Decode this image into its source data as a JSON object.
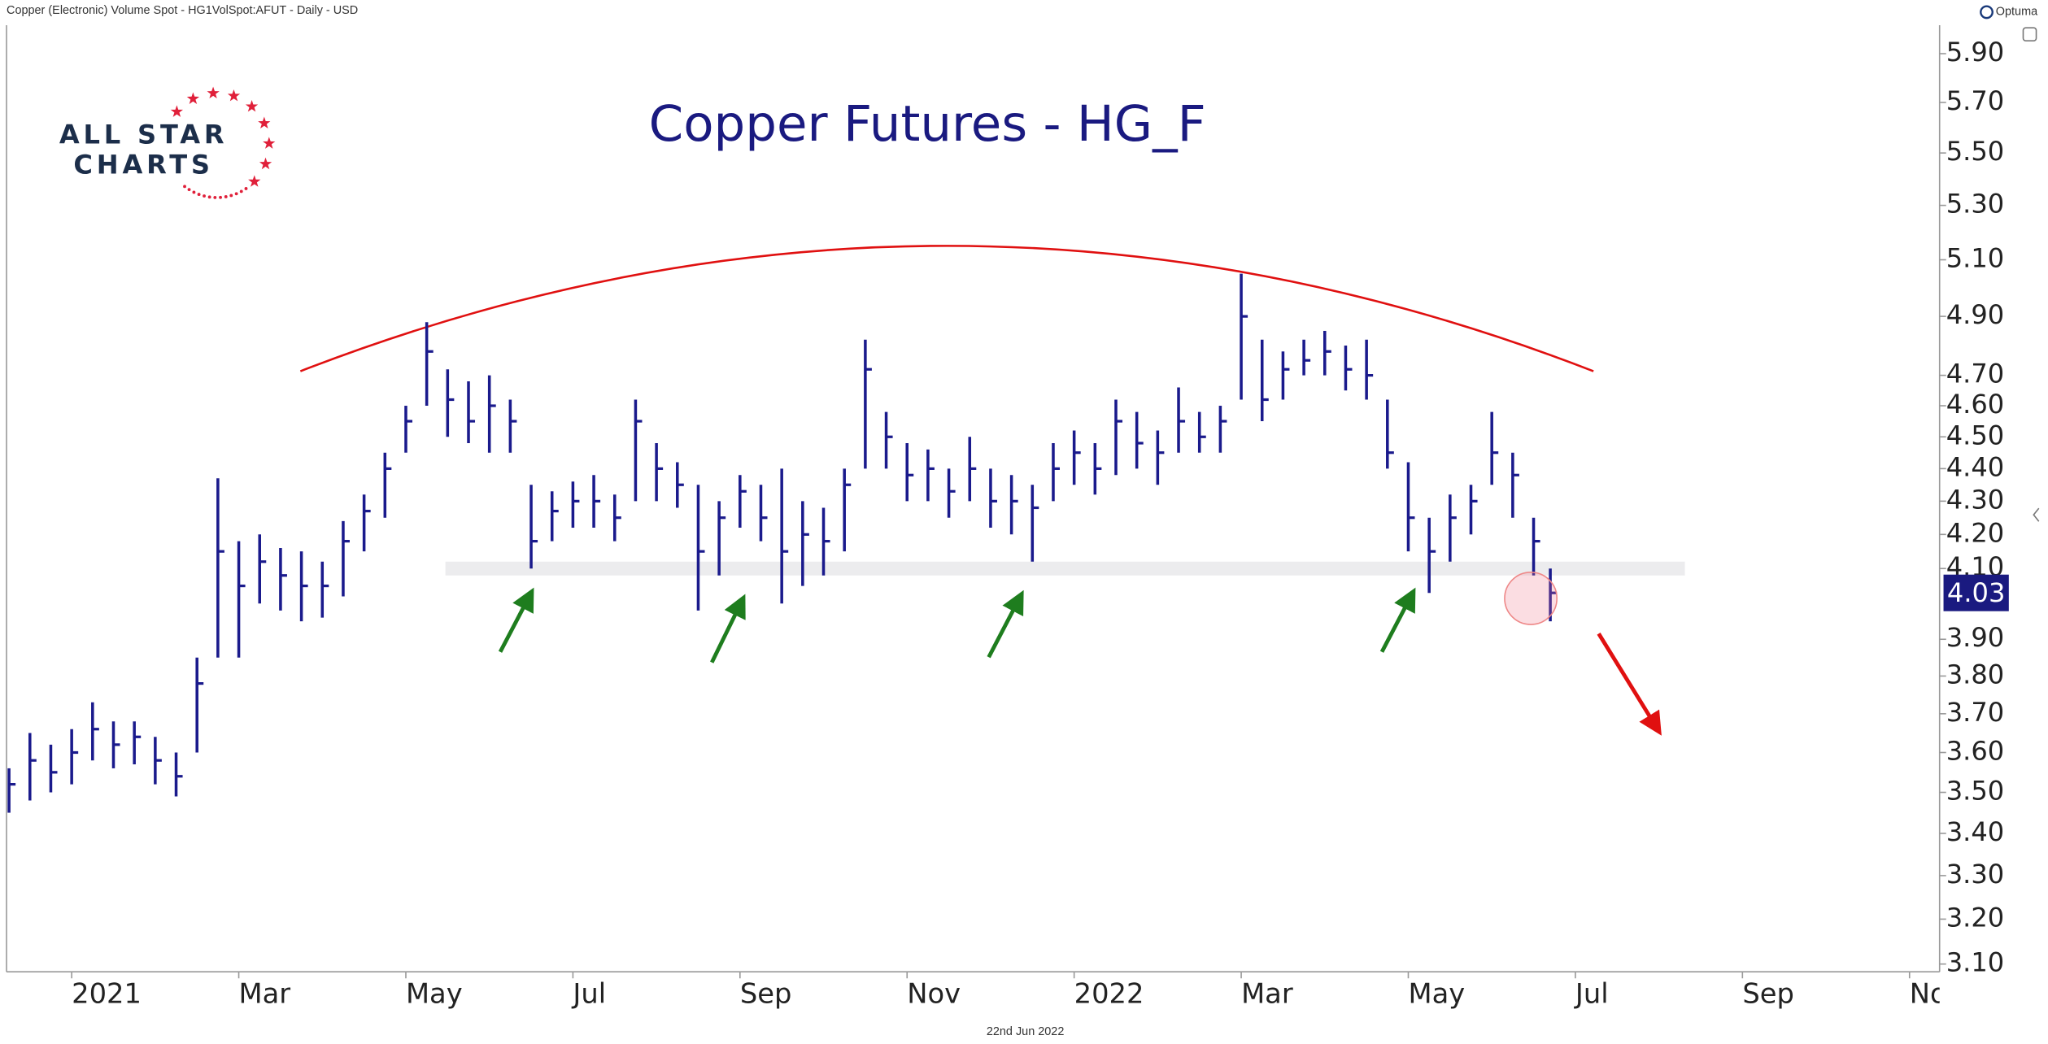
{
  "header": {
    "source": "Copper (Electronic) Volume Spot - HG1VolSpot:AFUT - Daily - USD",
    "brand": "Optuma"
  },
  "logo": [
    "ALL STAR",
    "CHARTS"
  ],
  "footer_date": "22nd Jun 2022",
  "chart_data": {
    "type": "ohlc",
    "title": "Copper Futures - HG_F",
    "color": "#1a1a8c",
    "log_scale": true,
    "x": [
      -0.75,
      -0.5,
      -0.25,
      0,
      0.25,
      0.5,
      0.75,
      1,
      1.25,
      1.5,
      1.75,
      2,
      2.25,
      2.5,
      2.75,
      3,
      3.25,
      3.5,
      3.75,
      4,
      4.25,
      4.5,
      4.75,
      5,
      5.25,
      5.5,
      5.75,
      6,
      6.25,
      6.5,
      6.75,
      7,
      7.25,
      7.5,
      7.75,
      8,
      8.25,
      8.5,
      8.75,
      9,
      9.25,
      9.5,
      9.75,
      10,
      10.25,
      10.5,
      10.75,
      11,
      11.25,
      11.5,
      11.75,
      12,
      12.25,
      12.5,
      12.75,
      13,
      13.25,
      13.5,
      13.75,
      14,
      14.25,
      14.5,
      14.75,
      15,
      15.25,
      15.5,
      15.75,
      16,
      16.25,
      16.5,
      16.75,
      17,
      17.25,
      17.5,
      17.7
    ],
    "high": [
      3.56,
      3.65,
      3.62,
      3.66,
      3.73,
      3.68,
      3.68,
      3.64,
      3.6,
      3.85,
      4.37,
      4.18,
      4.2,
      4.16,
      4.15,
      4.12,
      4.24,
      4.32,
      4.45,
      4.6,
      4.88,
      4.72,
      4.68,
      4.7,
      4.62,
      4.35,
      4.33,
      4.36,
      4.38,
      4.32,
      4.62,
      4.48,
      4.42,
      4.35,
      4.3,
      4.38,
      4.35,
      4.4,
      4.3,
      4.28,
      4.4,
      4.82,
      4.58,
      4.48,
      4.46,
      4.4,
      4.5,
      4.4,
      4.38,
      4.35,
      4.48,
      4.52,
      4.48,
      4.62,
      4.58,
      4.52,
      4.66,
      4.58,
      4.6,
      5.05,
      4.82,
      4.78,
      4.82,
      4.85,
      4.8,
      4.82,
      4.62,
      4.42,
      4.25,
      4.32,
      4.35,
      4.58,
      4.45,
      4.25,
      4.1
    ],
    "low": [
      3.45,
      3.48,
      3.5,
      3.52,
      3.58,
      3.56,
      3.57,
      3.52,
      3.49,
      3.6,
      3.85,
      3.85,
      4.0,
      3.98,
      3.95,
      3.96,
      4.02,
      4.15,
      4.25,
      4.45,
      4.6,
      4.5,
      4.48,
      4.45,
      4.45,
      4.1,
      4.18,
      4.22,
      4.22,
      4.18,
      4.3,
      4.3,
      4.28,
      3.98,
      4.08,
      4.22,
      4.18,
      4.0,
      4.05,
      4.08,
      4.15,
      4.4,
      4.4,
      4.3,
      4.3,
      4.25,
      4.3,
      4.22,
      4.2,
      4.12,
      4.3,
      4.35,
      4.32,
      4.38,
      4.4,
      4.35,
      4.45,
      4.45,
      4.45,
      4.62,
      4.55,
      4.62,
      4.7,
      4.7,
      4.65,
      4.62,
      4.4,
      4.15,
      4.03,
      4.12,
      4.2,
      4.35,
      4.25,
      4.08,
      3.95
    ],
    "close": [
      3.52,
      3.58,
      3.55,
      3.6,
      3.66,
      3.62,
      3.64,
      3.58,
      3.54,
      3.78,
      4.15,
      4.05,
      4.12,
      4.08,
      4.05,
      4.05,
      4.18,
      4.27,
      4.4,
      4.55,
      4.78,
      4.62,
      4.55,
      4.6,
      4.55,
      4.18,
      4.27,
      4.3,
      4.3,
      4.25,
      4.55,
      4.4,
      4.35,
      4.15,
      4.25,
      4.33,
      4.25,
      4.15,
      4.2,
      4.18,
      4.35,
      4.72,
      4.5,
      4.38,
      4.4,
      4.33,
      4.4,
      4.3,
      4.3,
      4.28,
      4.4,
      4.45,
      4.4,
      4.55,
      4.48,
      4.45,
      4.55,
      4.5,
      4.55,
      4.9,
      4.62,
      4.72,
      4.75,
      4.78,
      4.72,
      4.7,
      4.45,
      4.25,
      4.15,
      4.25,
      4.3,
      4.45,
      4.38,
      4.18,
      4.03
    ],
    "support_zone": [
      4.08,
      4.12
    ],
    "xlim": [
      -0.78,
      22.36
    ],
    "xticks": [
      {
        "value": 0,
        "label": "2021"
      },
      {
        "value": 2,
        "label": "Mar"
      },
      {
        "value": 4,
        "label": "May"
      },
      {
        "value": 6,
        "label": "Jul"
      },
      {
        "value": 8,
        "label": "Sep"
      },
      {
        "value": 10,
        "label": "Nov"
      },
      {
        "value": 12,
        "label": "2022"
      },
      {
        "value": 14,
        "label": "Mar"
      },
      {
        "value": 16,
        "label": "May"
      },
      {
        "value": 18,
        "label": "Jul"
      },
      {
        "value": 20,
        "label": "Sep"
      },
      {
        "value": 22,
        "label": "Nov"
      }
    ],
    "ylim": [
      3.083,
      6.02
    ],
    "yticks": [
      {
        "value": 3.1,
        "label": "3.10"
      },
      {
        "value": 3.2,
        "label": "3.20"
      },
      {
        "value": 3.3,
        "label": "3.30"
      },
      {
        "value": 3.4,
        "label": "3.40"
      },
      {
        "value": 3.5,
        "label": "3.50"
      },
      {
        "value": 3.6,
        "label": "3.60"
      },
      {
        "value": 3.7,
        "label": "3.70"
      },
      {
        "value": 3.8,
        "label": "3.80"
      },
      {
        "value": 3.9,
        "label": "3.90"
      },
      {
        "value": 4.1,
        "label": "4.10"
      },
      {
        "value": 4.2,
        "label": "4.20"
      },
      {
        "value": 4.3,
        "label": "4.30"
      },
      {
        "value": 4.4,
        "label": "4.40"
      },
      {
        "value": 4.5,
        "label": "4.50"
      },
      {
        "value": 4.6,
        "label": "4.60"
      },
      {
        "value": 4.7,
        "label": "4.70"
      },
      {
        "value": 4.9,
        "label": "4.90"
      },
      {
        "value": 5.1,
        "label": "5.10"
      },
      {
        "value": 5.3,
        "label": "5.30"
      },
      {
        "value": 5.5,
        "label": "5.50"
      },
      {
        "value": 5.7,
        "label": "5.70"
      },
      {
        "value": 5.9,
        "label": "5.90"
      }
    ]
  }
}
